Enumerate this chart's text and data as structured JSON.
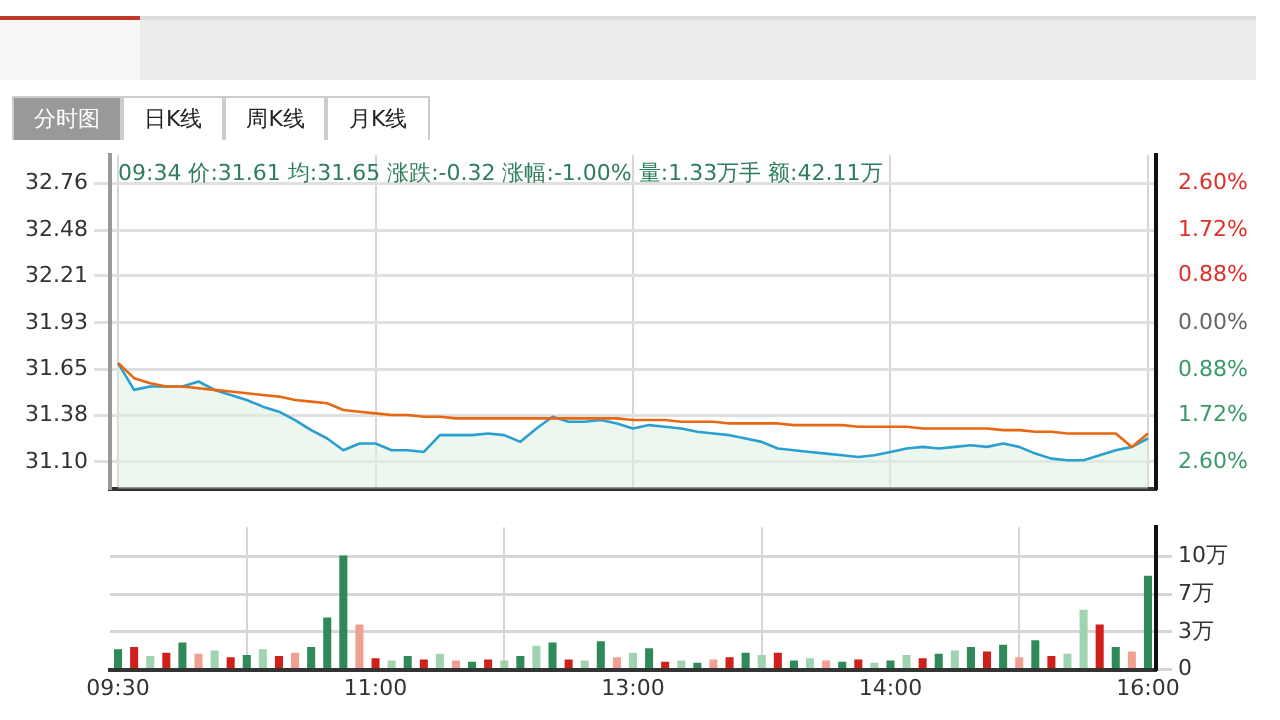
{
  "chart_data": [
    {
      "type": "other",
      "annotations": [
        "分时图",
        "日K线",
        "周K线",
        "月K线"
      ]
    },
    {
      "type": "line",
      "categories": [
        null,
        null,
        null,
        null,
        null,
        null,
        null,
        null,
        null,
        null,
        null,
        null,
        null,
        null,
        null,
        null,
        null,
        null,
        null,
        null,
        null,
        null,
        null,
        null,
        null,
        null,
        null,
        null,
        null,
        null,
        null,
        null,
        null,
        null,
        null,
        null,
        null,
        null,
        null,
        null,
        null,
        null,
        null,
        null,
        null,
        null,
        null,
        null,
        null,
        null,
        null,
        null,
        null,
        null,
        null,
        null,
        null,
        null,
        null,
        null,
        null,
        null,
        null,
        null,
        null
      ],
      "series": [
        {
          "type": "area",
          "color": "#2a9fd0",
          "values": [
            31.69,
            31.53,
            31.55,
            31.55,
            31.55,
            31.58,
            31.53,
            31.5,
            31.47,
            31.43,
            31.4,
            31.35,
            31.29,
            31.24,
            31.17,
            31.21,
            31.21,
            31.17,
            31.17,
            31.16,
            31.26,
            31.26,
            31.26,
            31.27,
            31.26,
            31.22,
            31.3,
            31.37,
            31.34,
            31.34,
            31.35,
            31.33,
            31.3,
            31.32,
            31.31,
            31.3,
            31.28,
            31.27,
            31.26,
            31.24,
            31.22,
            31.18,
            31.17,
            31.16,
            31.15,
            31.14,
            31.13,
            31.14,
            31.16,
            31.18,
            31.19,
            31.18,
            31.19,
            31.2,
            31.19,
            31.21,
            31.19,
            31.15,
            31.12,
            31.11,
            31.11,
            31.14,
            31.17,
            31.19,
            31.24
          ]
        },
        {
          "type": "line",
          "color": "#e8670f",
          "values": [
            31.69,
            31.6,
            31.57,
            31.55,
            31.55,
            31.54,
            31.53,
            31.52,
            31.51,
            31.5,
            31.49,
            31.47,
            31.46,
            31.45,
            31.41,
            31.4,
            31.39,
            31.38,
            31.38,
            31.37,
            31.37,
            31.36,
            31.36,
            31.36,
            31.36,
            31.36,
            31.36,
            31.36,
            31.36,
            31.36,
            31.36,
            31.36,
            31.35,
            31.35,
            31.35,
            31.34,
            31.34,
            31.34,
            31.33,
            31.33,
            31.33,
            31.33,
            31.32,
            31.32,
            31.32,
            31.32,
            31.31,
            31.31,
            31.31,
            31.31,
            31.3,
            31.3,
            31.3,
            31.3,
            31.3,
            31.29,
            31.29,
            31.28,
            31.28,
            31.27,
            31.27,
            31.27,
            31.27,
            31.19,
            31.27
          ]
        }
      ],
      "ylim": [
        30.94,
        32.93
      ],
      "yticks": [
        32.76,
        32.48,
        32.21,
        31.93,
        31.65,
        31.38,
        {
          "value": 31.1,
          "label": "31.10"
        }
      ],
      "y2lim": [
        -3.1,
        3.13
      ],
      "y2ticks": [
        {
          "value": 2.6,
          "label": "2.60%"
        },
        {
          "value": 1.72,
          "label": "1.72%"
        },
        {
          "value": 0.88,
          "label": "0.88%"
        },
        {
          "value": 0,
          "label": "0.00%"
        },
        {
          "value": -0.88,
          "label": "0.88%"
        },
        {
          "value": -1.72,
          "label": "1.72%"
        },
        {
          "value": -2.6,
          "label": "2.60%"
        }
      ],
      "grid": true,
      "tick_labels": "y",
      "marker": "none",
      "annotations": [
        "09:34 价:31.61 均:31.65 涨跌:-0.32 涨幅:-1.00% 量:1.33万手 额:42.11万"
      ]
    },
    {
      "type": "bar",
      "categories": [
        "09:30",
        null,
        null,
        null,
        null,
        null,
        null,
        null,
        null,
        null,
        null,
        null,
        null,
        null,
        null,
        null,
        "11:00",
        null,
        null,
        null,
        null,
        null,
        null,
        null,
        null,
        null,
        null,
        null,
        null,
        null,
        null,
        null,
        "13:00",
        null,
        null,
        null,
        null,
        null,
        null,
        null,
        null,
        null,
        null,
        null,
        null,
        null,
        null,
        null,
        "14:00",
        null,
        null,
        null,
        null,
        null,
        null,
        null,
        null,
        null,
        null,
        null,
        null,
        null,
        null,
        null,
        "16:00"
      ],
      "values": [
        1.8,
        2.0,
        1.2,
        1.5,
        2.4,
        1.4,
        1.7,
        1.1,
        1.3,
        1.8,
        1.2,
        1.5,
        2.0,
        4.6,
        10.1,
        4.0,
        1.0,
        0.8,
        1.2,
        0.9,
        1.4,
        0.8,
        0.7,
        0.9,
        0.8,
        1.2,
        2.1,
        2.4,
        0.9,
        0.8,
        2.5,
        1.1,
        1.5,
        1.9,
        0.7,
        0.8,
        0.6,
        0.9,
        1.1,
        1.5,
        1.3,
        1.5,
        0.8,
        1.0,
        0.8,
        0.7,
        0.9,
        0.6,
        0.8,
        1.3,
        1.0,
        1.4,
        1.7,
        2.0,
        1.6,
        2.2,
        1.1,
        2.6,
        1.2,
        1.4,
        5.3,
        4.0,
        2.0,
        1.6,
        8.3
      ],
      "colors": [
        "#2e8b57",
        "#d0201a",
        "#9fd4b0",
        "#d0201a",
        "#2e8b57",
        "#f0a090",
        "#9fd4b0",
        "#d0201a",
        "#2e8b57",
        "#9fd4b0",
        "#d0201a",
        "#f0a090",
        "#2e8b57",
        "#2e8b57",
        "#2e8b57",
        "#f0a090",
        "#d0201a",
        "#9fd4b0",
        "#2e8b57",
        "#d0201a",
        "#9fd4b0",
        "#f0a090",
        "#2e8b57",
        "#d0201a",
        "#9fd4b0",
        "#2e8b57",
        "#9fd4b0",
        "#2e8b57",
        "#d0201a",
        "#9fd4b0",
        "#2e8b57",
        "#f0a090",
        "#9fd4b0",
        "#2e8b57",
        "#d0201a",
        "#9fd4b0",
        "#2e8b57",
        "#f0a090",
        "#d0201a",
        "#2e8b57",
        "#9fd4b0",
        "#d0201a",
        "#2e8b57",
        "#9fd4b0",
        "#f0a090",
        "#2e8b57",
        "#d0201a",
        "#9fd4b0",
        "#2e8b57",
        "#9fd4b0",
        "#d0201a",
        "#2e8b57",
        "#9fd4b0",
        "#2e8b57",
        "#d0201a",
        "#2e8b57",
        "#f0a090",
        "#2e8b57",
        "#d0201a",
        "#9fd4b0",
        "#9fd4b0",
        "#d0201a",
        "#2e8b57",
        "#f0a090",
        "#2e8b57"
      ],
      "ylim": [
        0,
        12.6
      ],
      "yticks": [
        0,
        {
          "value": 3.33,
          "label": "3万"
        },
        {
          "value": 6.67,
          "label": "7万"
        },
        {
          "value": 10,
          "label": "10万"
        }
      ],
      "grid": true
    }
  ]
}
